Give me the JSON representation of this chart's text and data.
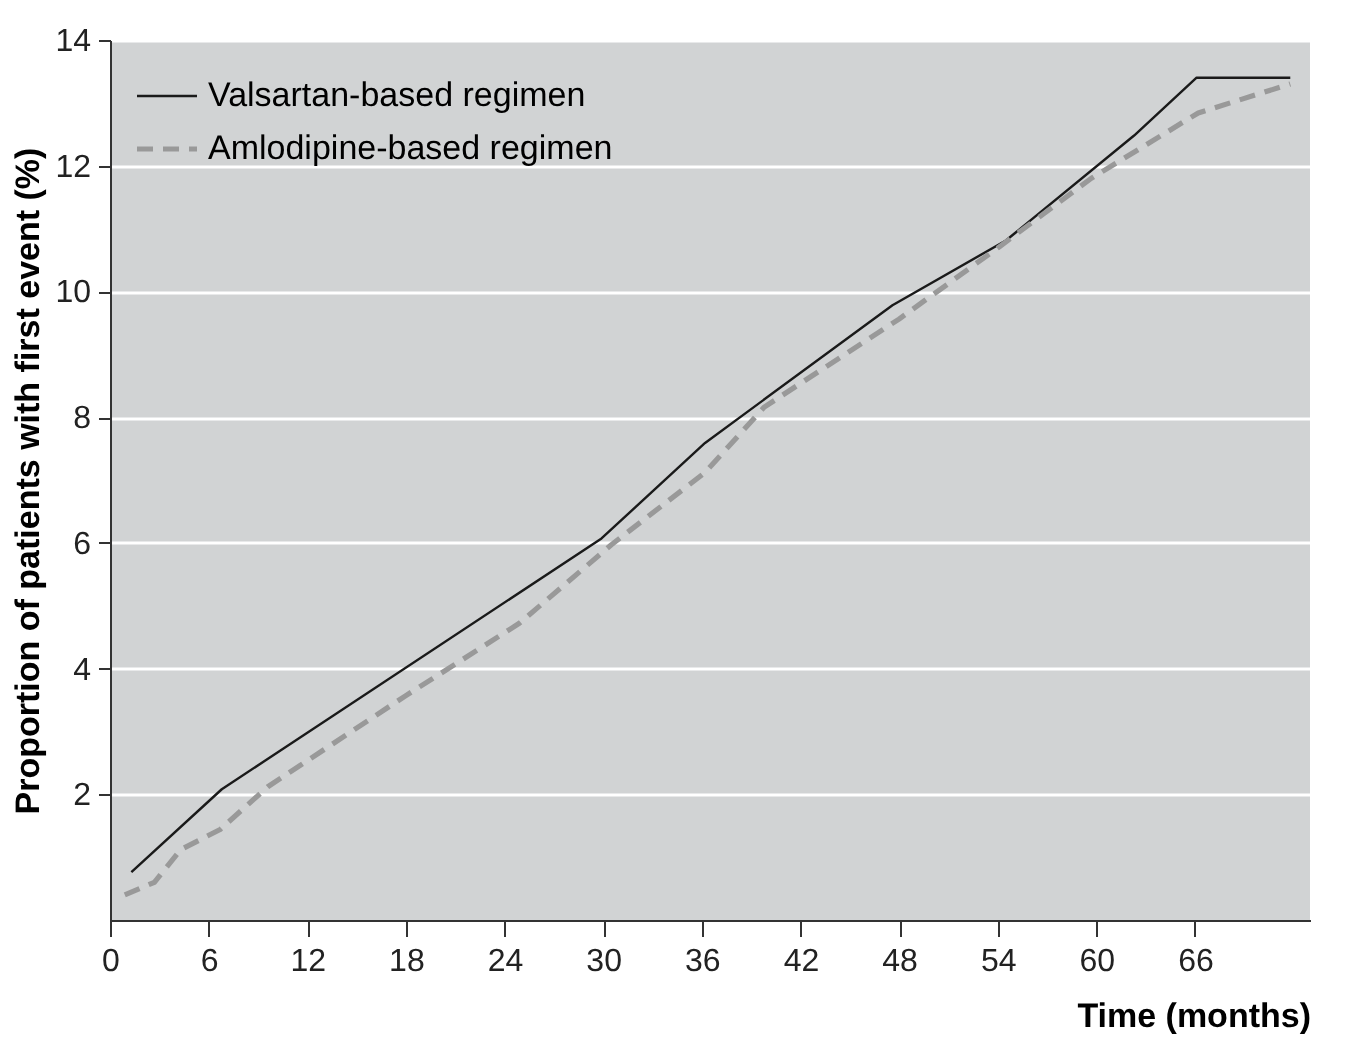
{
  "chart_data": {
    "type": "line",
    "xlabel": "Time (months)",
    "ylabel": "Proportion of patients with first event (%)",
    "xlim": [
      0,
      73
    ],
    "ylim": [
      0,
      14
    ],
    "xticks": [
      0,
      6,
      12,
      18,
      24,
      30,
      36,
      42,
      48,
      54,
      60,
      66
    ],
    "yticks": [
      2,
      4,
      6,
      8,
      10,
      12,
      14
    ],
    "grid": "y",
    "legend": "top left",
    "marker": "none",
    "series": [
      {
        "name": "Valsartan-based regimen",
        "color": "#1a1a1a",
        "line_style": "solid",
        "x": [
          1.3,
          6.8,
          29.9,
          36.2,
          47.6,
          54.5,
          62.3,
          66.1,
          71.8
        ],
        "values": [
          0.76,
          2.08,
          6.07,
          7.59,
          9.78,
          10.81,
          12.48,
          13.4,
          13.4
        ]
      },
      {
        "name": "Amlodipine-based regimen",
        "color": "#999999",
        "line_style": "dashed",
        "x": [
          0.9,
          2.7,
          4.3,
          6.7,
          9.6,
          18,
          24.9,
          30.5,
          36.2,
          39.8,
          48,
          54.1,
          59.7,
          66.2,
          71.8
        ],
        "values": [
          0.4,
          0.6,
          1.12,
          1.44,
          2.12,
          3.57,
          4.72,
          5.97,
          7.12,
          8.16,
          9.56,
          10.71,
          11.8,
          12.84,
          13.3
        ]
      }
    ]
  }
}
